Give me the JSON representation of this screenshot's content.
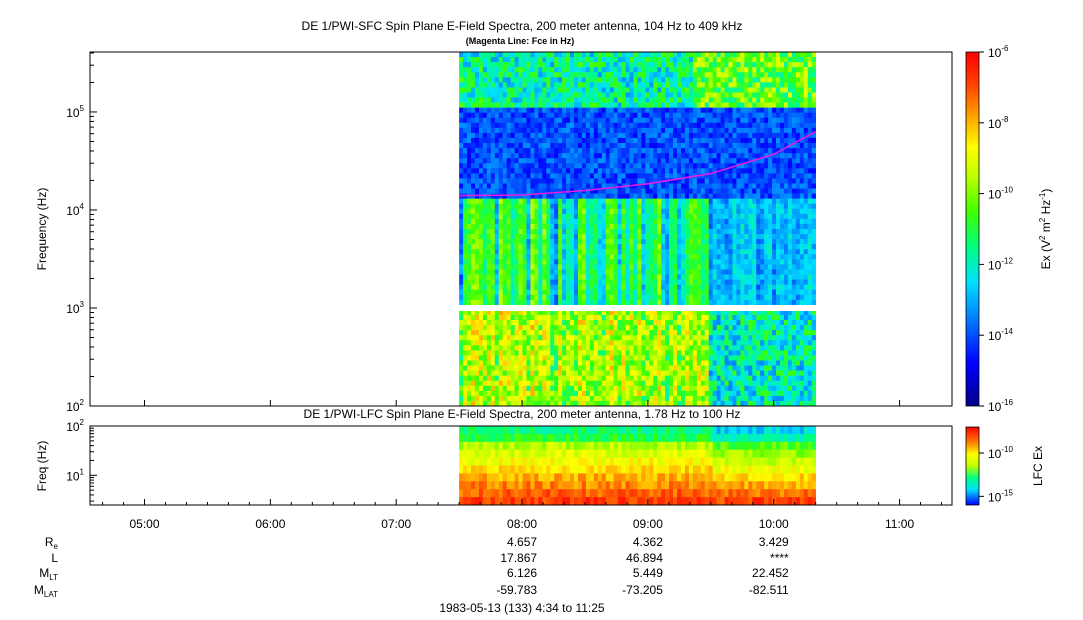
{
  "chart_data": [
    {
      "type": "heatmap",
      "title": "DE 1/PWI-SFC  Spin Plane E-Field Spectra, 200 meter antenna, 104 Hz to 409 kHz",
      "subtitle": "(Magenta Line: Fce in Hz)",
      "ylabel": "Frequency (Hz)",
      "yscale": "log",
      "ylim": [
        100,
        409000
      ],
      "yticks": [
        {
          "value": 100,
          "base": "10",
          "exp": "2"
        },
        {
          "value": 1000,
          "base": "10",
          "exp": "3"
        },
        {
          "value": 10000,
          "base": "10",
          "exp": "4"
        },
        {
          "value": 100000,
          "base": "10",
          "exp": "5"
        }
      ],
      "data_time_range": [
        "07:30",
        "10:20"
      ],
      "gap_frequency_hz": 1000,
      "colorbar": {
        "label_base": "Ex (V",
        "label_sup1": "2",
        "label_mid": " m",
        "label_sup2": "2",
        "label_mid2": " Hz",
        "label_sup3": "-1",
        "label_end": ")",
        "scale": "log",
        "range": [
          1e-16,
          1e-06
        ],
        "ticks": [
          {
            "value": 1e-06,
            "base": "10",
            "exp": "-6"
          },
          {
            "value": 1e-08,
            "base": "10",
            "exp": "-8"
          },
          {
            "value": 1e-10,
            "base": "10",
            "exp": "-10"
          },
          {
            "value": 1e-12,
            "base": "10",
            "exp": "-12"
          },
          {
            "value": 1e-14,
            "base": "10",
            "exp": "-14"
          },
          {
            "value": 1e-16,
            "base": "10",
            "exp": "-16"
          }
        ]
      },
      "fce_line": {
        "color": "#e020e0",
        "points": [
          {
            "time": "07:30",
            "freq": 14000
          },
          {
            "time": "08:00",
            "freq": 14200
          },
          {
            "time": "08:30",
            "freq": 15800
          },
          {
            "time": "09:00",
            "freq": 18500
          },
          {
            "time": "09:30",
            "freq": 23500
          },
          {
            "time": "10:00",
            "freq": 37000
          },
          {
            "time": "10:20",
            "freq": 63000
          }
        ]
      }
    },
    {
      "type": "heatmap",
      "title": "DE 1/PWI-LFC  Spin Plane E-Field Spectra, 200 meter antenna, 1.78 Hz to 100 Hz",
      "ylabel": "Freq (Hz)",
      "yscale": "log",
      "ylim": [
        2.5,
        100
      ],
      "yticks": [
        {
          "value": 10,
          "base": "10",
          "exp": "1"
        },
        {
          "value": 100,
          "base": "10",
          "exp": "2"
        }
      ],
      "data_time_range": [
        "07:30",
        "10:20"
      ],
      "colorbar": {
        "label": "LFC Ex",
        "scale": "log",
        "range": [
          1e-16,
          1e-07
        ],
        "ticks": [
          {
            "value": 1e-10,
            "base": "10",
            "exp": "-10"
          },
          {
            "value": 1e-15,
            "base": "10",
            "exp": "-15"
          }
        ]
      }
    }
  ],
  "time_axis": {
    "range": [
      "04:34",
      "11:25"
    ],
    "ticks": [
      "05:00",
      "06:00",
      "07:00",
      "08:00",
      "09:00",
      "10:00",
      "11:00"
    ]
  },
  "ephemeris": {
    "rows": [
      {
        "label": "R",
        "sub": "e",
        "values": [
          "4.657",
          "4.362",
          "3.429"
        ]
      },
      {
        "label": "L",
        "sub": "",
        "values": [
          "17.867",
          "46.894",
          "****"
        ]
      },
      {
        "label": "M",
        "sub": "LT",
        "values": [
          "6.126",
          "5.449",
          "22.452"
        ]
      },
      {
        "label": "M",
        "sub": "LAT",
        "values": [
          "-59.783",
          "-73.205",
          "-82.511"
        ]
      }
    ],
    "at_times": [
      "08:00",
      "09:00",
      "10:00"
    ]
  },
  "footer": "1983-05-13 (133) 4:34 to 11:25",
  "colors": {
    "fce_line": "#e020e0",
    "colormap": [
      "#00008b",
      "#0000ff",
      "#0080ff",
      "#00e0ff",
      "#00ff80",
      "#40ff00",
      "#c0ff00",
      "#ffff00",
      "#ffa000",
      "#ff4000",
      "#ff0000"
    ]
  }
}
